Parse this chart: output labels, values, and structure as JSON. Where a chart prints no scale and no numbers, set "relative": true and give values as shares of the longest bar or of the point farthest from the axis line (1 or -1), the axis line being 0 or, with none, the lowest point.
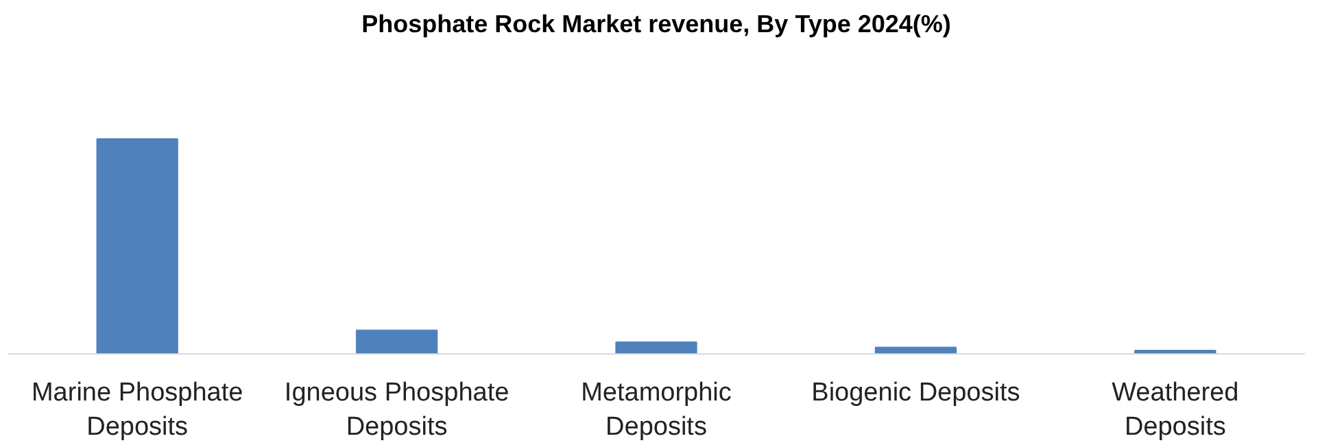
{
  "chart_data": {
    "type": "bar",
    "title": "Phosphate Rock Market revenue, By Type 2024(%)",
    "categories": [
      "Marine Phosphate Deposits",
      "Igneous Phosphate Deposits",
      "Metamorphic Deposits",
      "Biogenic Deposits",
      "Weathered Deposits"
    ],
    "values": [
      1,
      0.11,
      0.055,
      0.03,
      0.016
    ],
    "color": "#4f81bd",
    "relative": true
  }
}
